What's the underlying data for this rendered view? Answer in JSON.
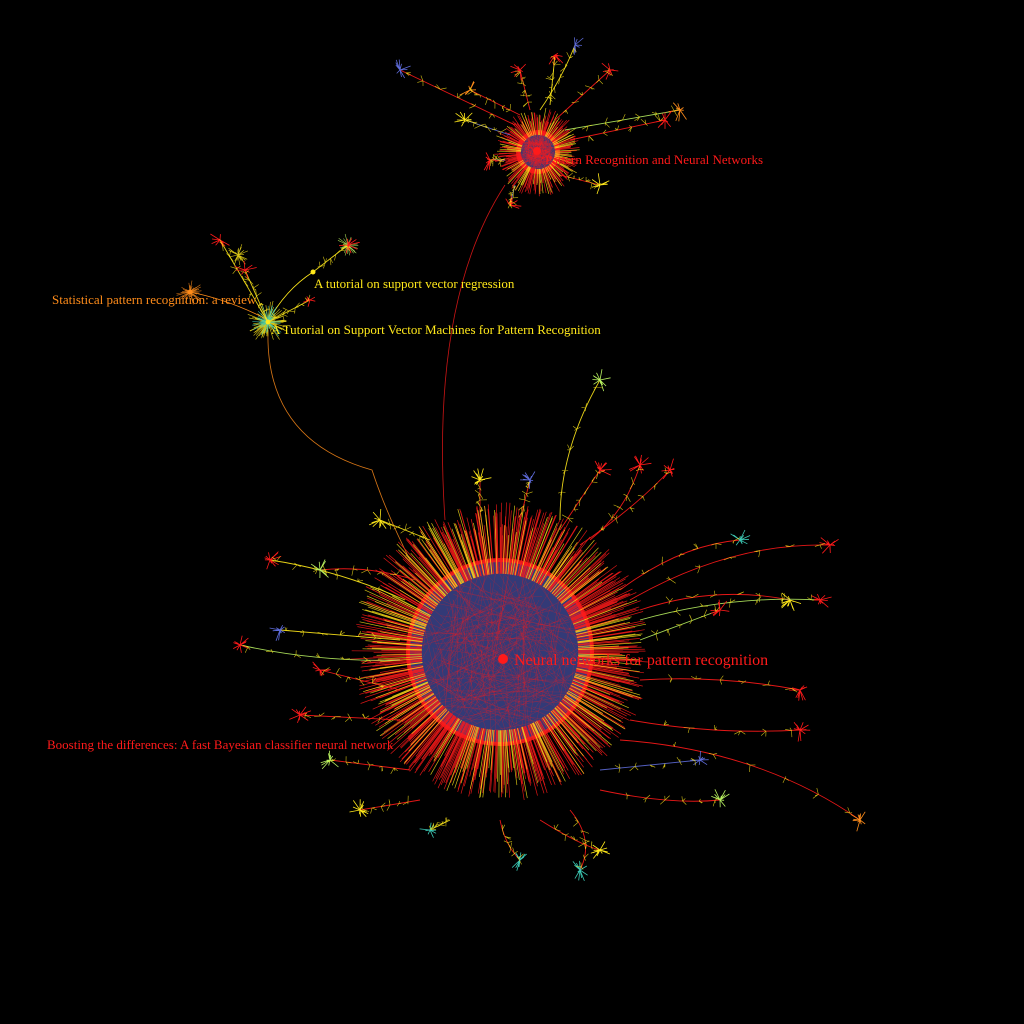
{
  "colors": {
    "background": "#000000",
    "red": "#ff1a1a",
    "yellow": "#ffe81a",
    "orange": "#ff8c1a",
    "blue": "#5d6ad8",
    "green": "#b8f060",
    "teal": "#3cc8b4"
  },
  "graph": {
    "hubs": [
      {
        "id": "nn",
        "label": "Neural networks for pattern recognition",
        "color": "red"
      },
      {
        "id": "prnn",
        "label": "Pattern Recognition and Neural Networks",
        "color": "red"
      },
      {
        "id": "svr",
        "label": "A tutorial on support vector regression",
        "color": "yellow"
      },
      {
        "id": "spr",
        "label": "Statistical pattern recognition: a review",
        "color": "orange"
      },
      {
        "id": "svm",
        "label": "A Tutorial on Support Vector Machines for Pattern Recognition",
        "color": "yellow"
      },
      {
        "id": "boost",
        "label": "Boosting the differences: A fast Bayesian classifier neural network",
        "color": "red"
      }
    ]
  }
}
